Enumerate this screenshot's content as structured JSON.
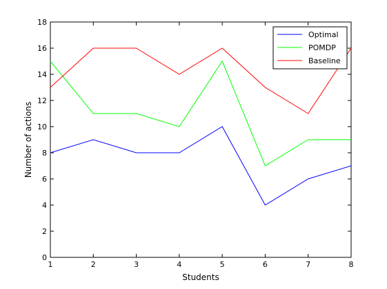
{
  "chart_data": {
    "type": "line",
    "title": "",
    "xlabel": "Students",
    "ylabel": "Number of actions",
    "x": [
      1,
      2,
      3,
      4,
      5,
      6,
      7,
      8
    ],
    "xlim": [
      1,
      8
    ],
    "ylim": [
      0,
      18
    ],
    "xticks": [
      1,
      2,
      3,
      4,
      5,
      6,
      7,
      8
    ],
    "yticks": [
      0,
      2,
      4,
      6,
      8,
      10,
      12,
      14,
      16,
      18
    ],
    "grid": false,
    "legend_position": "top-right",
    "series": [
      {
        "name": "Optimal",
        "color": "#0000ff",
        "values": [
          8,
          9,
          8,
          8,
          10,
          4,
          6,
          7
        ]
      },
      {
        "name": "POMDP",
        "color": "#00ff00",
        "values": [
          15,
          11,
          11,
          10,
          15,
          7,
          9,
          9
        ]
      },
      {
        "name": "Baseline",
        "color": "#ff0000",
        "values": [
          13,
          16,
          16,
          14,
          16,
          13,
          11,
          16
        ]
      }
    ]
  }
}
